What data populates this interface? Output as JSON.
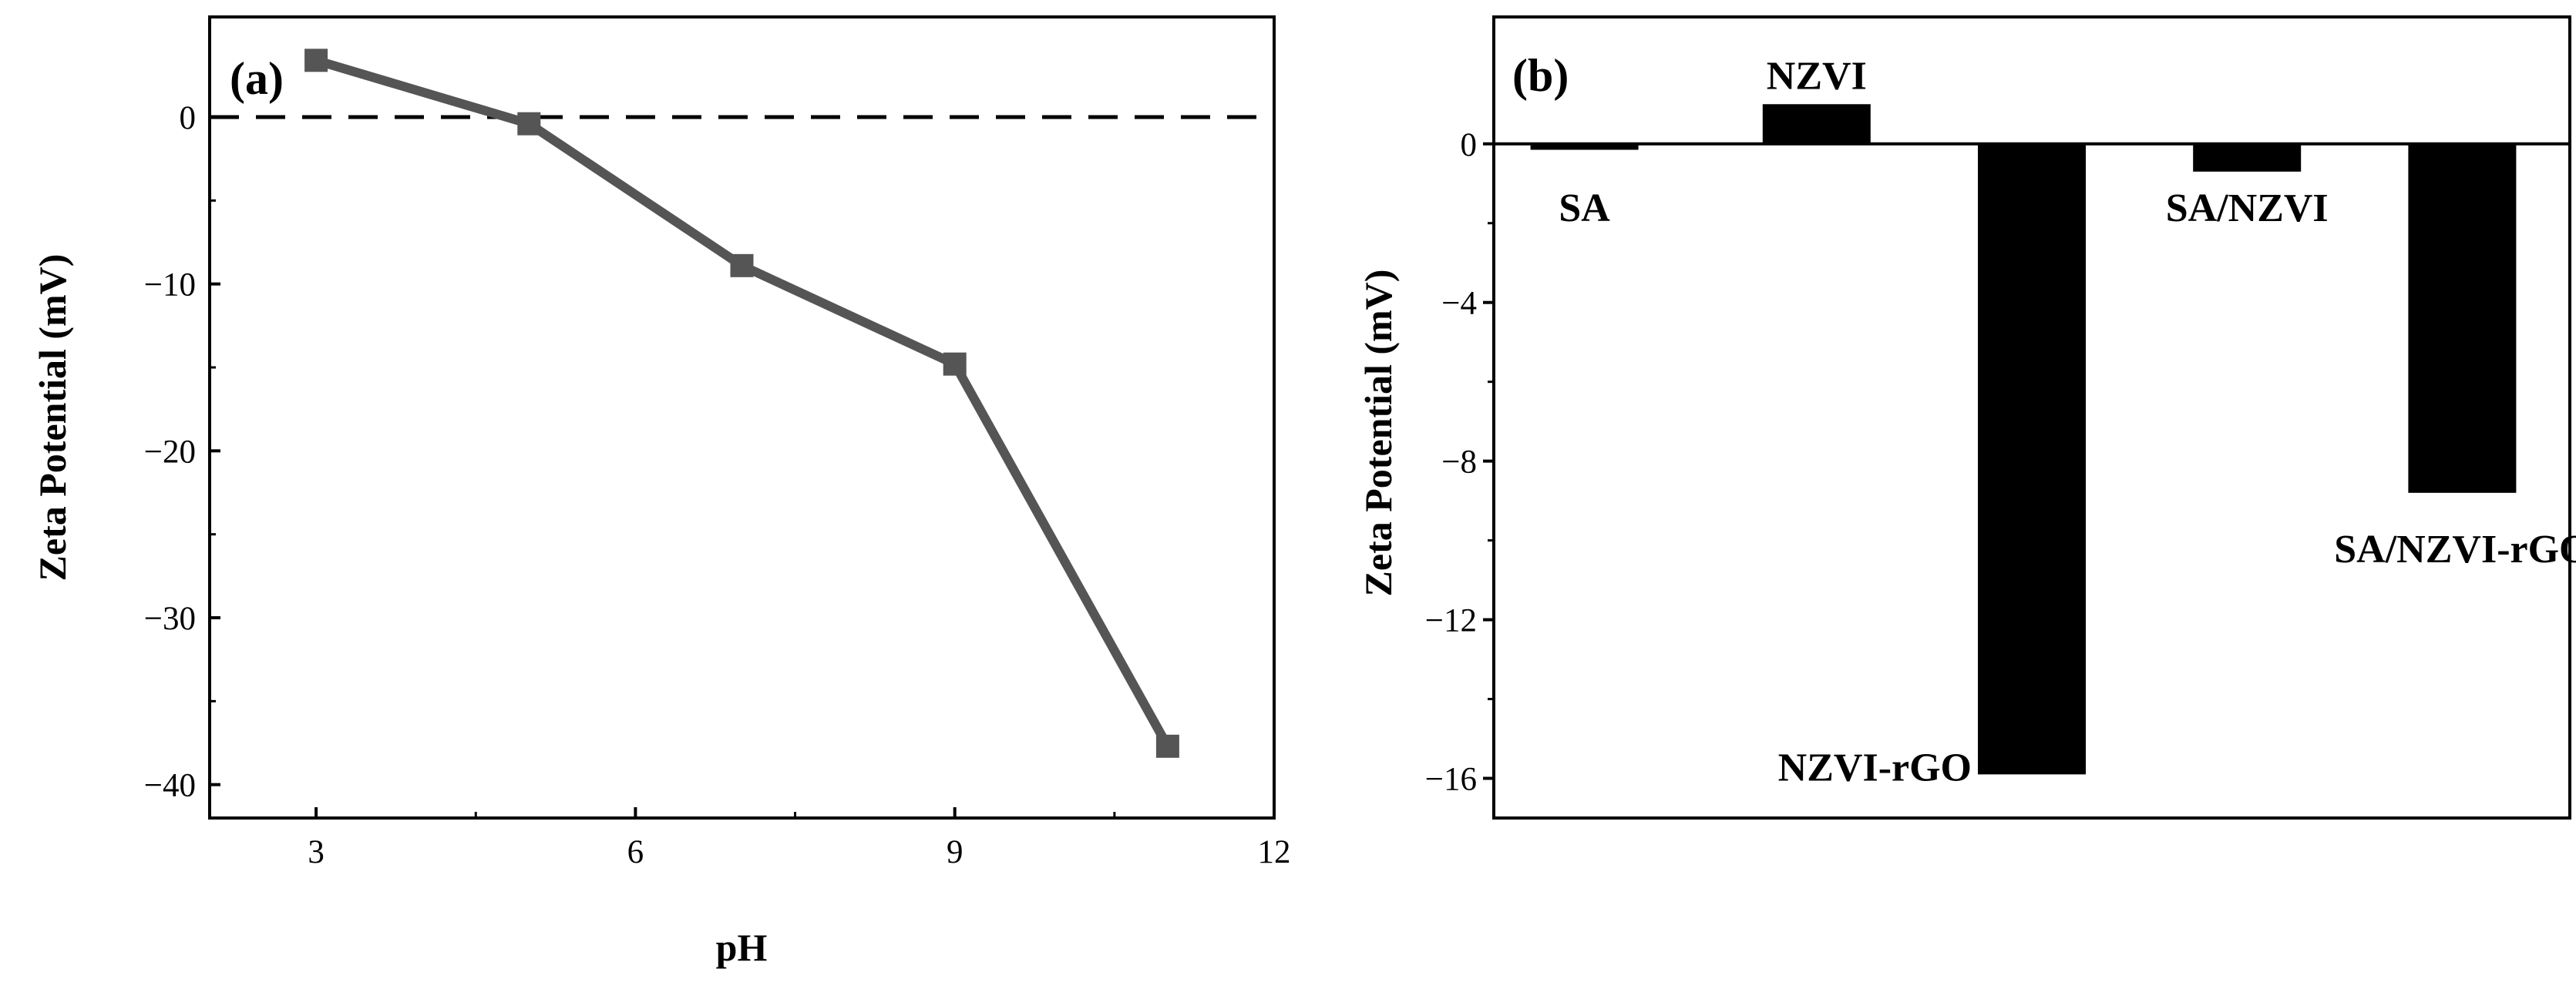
{
  "chart_data": [
    {
      "type": "line",
      "panel_label": "(a)",
      "xlabel": "pH",
      "ylabel": "Zeta Potential (mV)",
      "xlim": [
        2,
        12
      ],
      "ylim": [
        -42,
        6
      ],
      "xticks": [
        3,
        6,
        9,
        12
      ],
      "yticks": [
        0,
        -10,
        -20,
        -30,
        -40
      ],
      "ytick_labels": [
        "0",
        "−10",
        "−20",
        "−30",
        "−40"
      ],
      "series": [
        {
          "x": [
            3,
            5,
            7,
            9,
            11
          ],
          "y": [
            3.4,
            -0.4,
            -8.9,
            -14.8,
            -37.7
          ],
          "color": "#555555",
          "marker": "square"
        }
      ],
      "reference_line": {
        "y": 0,
        "style": "dashed"
      },
      "grid": false
    },
    {
      "type": "bar",
      "panel_label": "(b)",
      "xlabel": "",
      "ylabel": "Zeta Potential (mV)",
      "ylim": [
        -17,
        3.2
      ],
      "yticks": [
        0,
        -4,
        -8,
        -12,
        -16
      ],
      "ytick_labels": [
        "0",
        "−4",
        "−8",
        "−12",
        "−16"
      ],
      "categories": [
        "SA",
        "NZVI",
        "NZVI-rGO",
        "SA/NZVI",
        "SA/NZVI-rGO"
      ],
      "values": [
        -0.15,
        1.0,
        -15.9,
        -0.7,
        -8.8
      ],
      "color": "#000000",
      "grid": false
    }
  ]
}
